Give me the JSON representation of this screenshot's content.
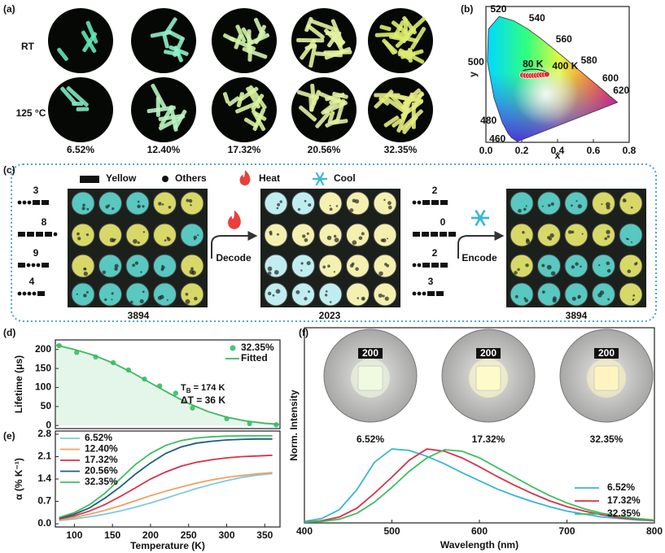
{
  "figure": {
    "panel_labels": [
      "(a)",
      "(b)",
      "(c)",
      "(d)",
      "(e)",
      "(f)"
    ]
  },
  "panel_a": {
    "row_labels": [
      "RT",
      "125 °C"
    ],
    "samples": [
      "6.52%",
      "12.40%",
      "17.32%",
      "20.56%",
      "32.35%"
    ]
  },
  "panel_c": {
    "legend": [
      "Yellow",
      "Others",
      "Heat",
      "Cool"
    ],
    "left_codes": [
      "3",
      "8",
      "9",
      "4"
    ],
    "middle_codes": [
      "2",
      "0",
      "2",
      "3"
    ],
    "captions": [
      "3894",
      "2023",
      "3894"
    ],
    "actions": [
      "Decode",
      "Encode"
    ]
  },
  "panel_f_photos": {
    "chip_label": "200",
    "samples": [
      "6.52%",
      "17.32%",
      "32.35%"
    ]
  },
  "chart_data": [
    {
      "type": "scatter",
      "xlabel": "x",
      "ylabel": "y",
      "xlim": [
        0,
        0.8
      ],
      "ylim": [
        0,
        0.9
      ],
      "xticks": [
        {
          "value": 0,
          "label": "0.0"
        },
        {
          "value": 0.2,
          "label": "0.2"
        },
        {
          "value": 0.4,
          "label": "0.4"
        },
        {
          "value": 0.6,
          "label": "0.6"
        },
        {
          "value": 0.8,
          "label": "0.8"
        }
      ],
      "locus_labels": [
        "460",
        "480",
        "500",
        "520",
        "540",
        "560",
        "580",
        "600",
        "620"
      ],
      "annotations": [
        "80 K",
        "400 K"
      ],
      "series": [
        {
          "color": "#e03030",
          "x": [
            0.205,
            0.22,
            0.235,
            0.25,
            0.265,
            0.28,
            0.295,
            0.31,
            0.325,
            0.34
          ],
          "values": [
            0.445,
            0.443,
            0.442,
            0.442,
            0.443,
            0.444,
            0.446,
            0.447,
            0.449,
            0.451
          ]
        }
      ]
    },
    {
      "type": "line",
      "ylabel": "Lifetime (μs)",
      "xlim": [
        75,
        370
      ],
      "ylim": [
        -8,
        225
      ],
      "yticks": [
        0,
        50,
        100,
        150,
        200
      ],
      "annotations": {
        "tb": {
          "symbol": "T",
          "subscript": "B",
          "text": " = 174 K"
        },
        "dt": "ΔT = 36 K"
      },
      "series": [
        {
          "name": "32.35%",
          "mode": "markers",
          "color": "#4cc46f",
          "x": [
            80,
            103,
            128,
            151,
            171,
            192,
            212,
            233,
            255,
            300,
            330,
            365
          ],
          "values": [
            210,
            192,
            180,
            165,
            146,
            122,
            104,
            85,
            46,
            18,
            5,
            2
          ]
        },
        {
          "name": "Fitted",
          "mode": "line",
          "color": "#3cb860",
          "x": [
            75,
            100,
            125,
            150,
            175,
            200,
            225,
            250,
            275,
            300,
            325,
            350,
            370
          ],
          "values": [
            212,
            200,
            185,
            165,
            140,
            112,
            84,
            58,
            37,
            22,
            12,
            6,
            3
          ]
        }
      ]
    },
    {
      "type": "line",
      "xlabel": "Temperature (K)",
      "ylabel": "α (% K⁻¹)",
      "xlim": [
        75,
        370
      ],
      "ylim": [
        -0.1,
        2.9
      ],
      "xticks": [
        100,
        150,
        200,
        250,
        300,
        350
      ],
      "yticks": [
        {
          "value": 0,
          "label": "0.0"
        },
        {
          "value": 0.7,
          "label": "0.7"
        },
        {
          "value": 1.4,
          "label": "1.4"
        },
        {
          "value": 2.1,
          "label": "2.1"
        },
        {
          "value": 2.8,
          "label": "2.8"
        }
      ],
      "x": [
        80,
        100,
        120,
        140,
        160,
        180,
        200,
        220,
        240,
        260,
        280,
        300,
        320,
        340,
        360
      ],
      "series": [
        {
          "name": "6.52%",
          "color": "#7ec8e3",
          "values": [
            0.1,
            0.15,
            0.22,
            0.3,
            0.4,
            0.52,
            0.65,
            0.8,
            0.95,
            1.1,
            1.23,
            1.35,
            1.45,
            1.52,
            1.57
          ]
        },
        {
          "name": "12.40%",
          "color": "#f0a060",
          "values": [
            0.12,
            0.2,
            0.3,
            0.42,
            0.56,
            0.72,
            0.88,
            1.02,
            1.15,
            1.27,
            1.37,
            1.45,
            1.51,
            1.56,
            1.6
          ]
        },
        {
          "name": "17.32%",
          "color": "#d9304a",
          "values": [
            0.15,
            0.25,
            0.4,
            0.6,
            0.85,
            1.12,
            1.4,
            1.62,
            1.8,
            1.92,
            2.0,
            2.06,
            2.1,
            2.12,
            2.14
          ]
        },
        {
          "name": "20.56%",
          "color": "#1e5f7a",
          "values": [
            0.17,
            0.3,
            0.5,
            0.8,
            1.15,
            1.55,
            1.9,
            2.2,
            2.4,
            2.52,
            2.58,
            2.62,
            2.64,
            2.65,
            2.65
          ]
        },
        {
          "name": "32.35%",
          "color": "#3cc060",
          "values": [
            0.2,
            0.35,
            0.6,
            0.95,
            1.4,
            1.85,
            2.2,
            2.45,
            2.6,
            2.68,
            2.72,
            2.74,
            2.75,
            2.75,
            2.75
          ]
        }
      ]
    },
    {
      "type": "line",
      "xlabel": "Wavelength (nm)",
      "ylabel": "Norm. Intensity",
      "xlim": [
        400,
        800
      ],
      "ylim": [
        0,
        2.64
      ],
      "xticks": [
        400,
        500,
        600,
        700,
        800
      ],
      "x": [
        400,
        420,
        440,
        460,
        480,
        500,
        520,
        540,
        560,
        580,
        600,
        620,
        640,
        660,
        680,
        700,
        720,
        740,
        760,
        780,
        800
      ],
      "series": [
        {
          "name": "6.52%",
          "color": "#3ab4d8",
          "values": [
            0.02,
            0.06,
            0.18,
            0.45,
            0.82,
            1.0,
            0.98,
            0.9,
            0.8,
            0.68,
            0.57,
            0.46,
            0.37,
            0.29,
            0.22,
            0.16,
            0.12,
            0.08,
            0.06,
            0.04,
            0.03
          ]
        },
        {
          "name": "17.32%",
          "color": "#d9304a",
          "values": [
            0.01,
            0.03,
            0.08,
            0.2,
            0.4,
            0.62,
            0.85,
            1.0,
            0.97,
            0.88,
            0.76,
            0.63,
            0.51,
            0.4,
            0.3,
            0.22,
            0.16,
            0.11,
            0.07,
            0.05,
            0.03
          ]
        },
        {
          "name": "32.35%",
          "color": "#3cc060",
          "values": [
            0.01,
            0.02,
            0.05,
            0.13,
            0.28,
            0.48,
            0.7,
            0.88,
            0.99,
            0.97,
            0.88,
            0.75,
            0.62,
            0.49,
            0.37,
            0.27,
            0.19,
            0.13,
            0.09,
            0.06,
            0.04
          ]
        }
      ]
    }
  ]
}
